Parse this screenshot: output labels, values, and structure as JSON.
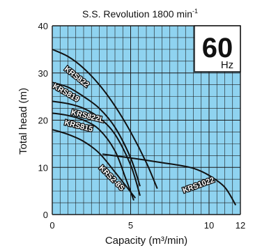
{
  "chart_data": {
    "type": "line",
    "title": "S.S. Revolution 1800 min",
    "title_superscript": "-1",
    "badge": {
      "value": "60",
      "unit": "Hz"
    },
    "xlabel": "Capacity (m³/min)",
    "ylabel": "Total head (m)",
    "xlim": [
      0,
      12
    ],
    "ylim": [
      0,
      40
    ],
    "xticks": [
      0,
      5,
      10,
      12
    ],
    "yticks": [
      0,
      10,
      20,
      30,
      40
    ],
    "grid": true,
    "background_color": "#8fd3f0",
    "grid_color": "#1a1a1a",
    "curve_color": "#111111",
    "series": [
      {
        "name": "KRS822",
        "x": [
          0,
          1,
          2,
          3,
          4,
          5,
          6,
          6.7
        ],
        "y": [
          35,
          33.5,
          31,
          27.5,
          23,
          17.5,
          11,
          5.5
        ]
      },
      {
        "name": "KRS819",
        "x": [
          0,
          1,
          2,
          3,
          4,
          5,
          5.6
        ],
        "y": [
          28,
          27,
          25,
          22.5,
          18.5,
          12,
          6
        ]
      },
      {
        "name": "KRS822L",
        "x": [
          0,
          1,
          2,
          3,
          4,
          5,
          5.6
        ],
        "y": [
          24,
          23.5,
          22.5,
          20.5,
          17,
          10.5,
          4
        ]
      },
      {
        "name": "KRS815",
        "x": [
          0,
          1,
          2,
          3,
          4,
          4.7,
          5.2
        ],
        "y": [
          21.5,
          21,
          20,
          18,
          13.5,
          7.5,
          3
        ]
      },
      {
        "name": "KRS2-8S",
        "x": [
          0,
          1,
          2,
          3,
          4,
          5.3
        ],
        "y": [
          18,
          17,
          15.5,
          13,
          9,
          3.5
        ]
      },
      {
        "name": "KRS1022",
        "x": [
          3.2,
          5,
          7,
          8,
          9,
          10,
          11,
          11.7
        ],
        "y": [
          12.8,
          12,
          11,
          10.5,
          9.8,
          8.3,
          5.8,
          2
        ]
      }
    ]
  }
}
